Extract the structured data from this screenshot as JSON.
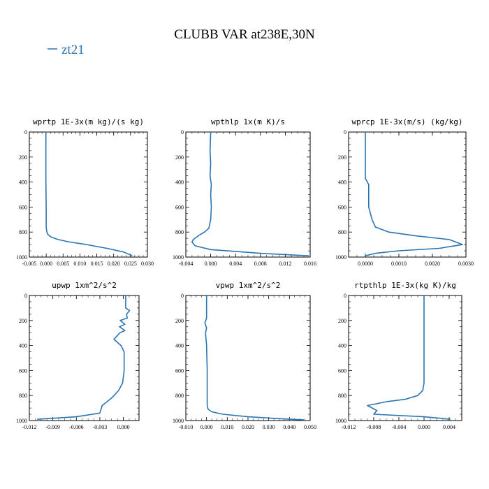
{
  "title": "CLUBB VAR at238E,30N",
  "legend": {
    "label": "zt21",
    "color": "#2a74b1"
  },
  "line_color": "#2a74b1",
  "chart_data": [
    {
      "type": "line",
      "title": "wprtp  1E-3x(m kg)/(s kg)",
      "xlim": [
        -0.005,
        0.03
      ],
      "ylim": [
        1000,
        0
      ],
      "xticks": [
        -0.005,
        0.0,
        0.005,
        0.01,
        0.015,
        0.02,
        0.025,
        0.03
      ],
      "xtick_labels": [
        "-0.005",
        "0.000",
        "0.005",
        "0.010",
        "0.015",
        "0.020",
        "0.025",
        "0.030"
      ],
      "yticks": [
        0,
        200,
        400,
        600,
        800,
        1000
      ],
      "ytick_labels": [
        "0",
        "200",
        "400",
        "600",
        "800",
        "1000"
      ],
      "series": [
        {
          "name": "zt21",
          "x": [
            -0.0001,
            -0.0001,
            -0.0001,
            0.0,
            0.0,
            0.0002,
            0.0005,
            0.0015,
            0.0035,
            0.007,
            0.012,
            0.018,
            0.023,
            0.0255
          ],
          "y": [
            0,
            200,
            400,
            600,
            760,
            800,
            820,
            840,
            860,
            880,
            900,
            930,
            960,
            990
          ]
        }
      ]
    },
    {
      "type": "line",
      "title": "wpthlp  1x(m K)/s",
      "xlim": [
        -0.004,
        0.016
      ],
      "ylim": [
        1000,
        0
      ],
      "xticks": [
        -0.004,
        0.0,
        0.004,
        0.008,
        0.012,
        0.016
      ],
      "xtick_labels": [
        "-0.004",
        "0.000",
        "0.004",
        "0.008",
        "0.012",
        "0.016"
      ],
      "yticks": [
        0,
        200,
        400,
        600,
        800,
        1000
      ],
      "ytick_labels": [
        "0",
        "200",
        "400",
        "600",
        "800",
        "1000"
      ],
      "series": [
        {
          "name": "zt21",
          "x": [
            0.0,
            -0.0001,
            0.0,
            -0.0001,
            0.0001,
            0.0,
            0.0001,
            0.0,
            -0.0003,
            -0.001,
            -0.002,
            -0.0028,
            -0.003,
            -0.0025,
            0.0,
            0.008,
            0.0158
          ],
          "y": [
            0,
            150,
            250,
            350,
            420,
            500,
            600,
            700,
            770,
            800,
            830,
            860,
            880,
            910,
            940,
            970,
            990
          ]
        }
      ]
    },
    {
      "type": "line",
      "title": "wprcp  1E-3x(m/s) (kg/kg)",
      "xlim": [
        -0.0005,
        0.003
      ],
      "ylim": [
        1000,
        0
      ],
      "xticks": [
        0.0,
        0.001,
        0.002,
        0.003
      ],
      "xtick_labels": [
        "0.0000",
        "0.0010",
        "0.0020",
        "0.0030"
      ],
      "yticks": [
        0,
        200,
        400,
        600,
        800,
        1000
      ],
      "ytick_labels": [
        "0",
        "200",
        "400",
        "600",
        "800",
        "1000"
      ],
      "series": [
        {
          "name": "zt21",
          "x": [
            0.0,
            0.0,
            0.0001,
            0.0001,
            0.0002,
            0.0003,
            0.0007,
            0.0015,
            0.0025,
            0.0029,
            0.0022,
            0.001,
            0.0003,
            0.0
          ],
          "y": [
            0,
            370,
            420,
            600,
            700,
            760,
            800,
            830,
            860,
            900,
            930,
            950,
            970,
            990
          ]
        }
      ]
    },
    {
      "type": "line",
      "title": "upwp  1xm^2/s^2",
      "xlim": [
        -0.012,
        0.002
      ],
      "ylim": [
        1000,
        0
      ],
      "xticks": [
        -0.012,
        -0.009,
        -0.006,
        -0.003,
        0.0
      ],
      "xtick_labels": [
        "-0.012",
        "-0.009",
        "-0.006",
        "-0.003",
        "0.000"
      ],
      "yticks": [
        0,
        200,
        400,
        600,
        800,
        1000
      ],
      "ytick_labels": [
        "0",
        "200",
        "400",
        "600",
        "800",
        "1000"
      ],
      "series": [
        {
          "name": "zt21",
          "x": [
            0.0003,
            0.0003,
            0.0008,
            0.0004,
            0.0005,
            -0.0004,
            0.0002,
            -0.0005,
            0.0002,
            -0.0005,
            -0.0009,
            -0.0012,
            -0.0003,
            0.0001,
            0.0001,
            -0.0001,
            -0.0006,
            -0.0015,
            -0.0027,
            -0.003,
            -0.006,
            -0.011
          ],
          "y": [
            0,
            100,
            120,
            150,
            180,
            200,
            230,
            250,
            280,
            300,
            330,
            350,
            400,
            450,
            600,
            700,
            760,
            820,
            880,
            940,
            970,
            990
          ]
        }
      ]
    },
    {
      "type": "line",
      "title": "vpwp  1xm^2/s^2",
      "xlim": [
        -0.01,
        0.05
      ],
      "ylim": [
        1000,
        0
      ],
      "xticks": [
        -0.01,
        0.0,
        0.01,
        0.02,
        0.03,
        0.04,
        0.05
      ],
      "xtick_labels": [
        "-0.010",
        "0.000",
        "0.010",
        "0.020",
        "0.030",
        "0.040",
        "0.050"
      ],
      "yticks": [
        0,
        200,
        400,
        600,
        800,
        1000
      ],
      "ytick_labels": [
        "0",
        "200",
        "400",
        "600",
        "800",
        "1000"
      ],
      "series": [
        {
          "name": "zt21",
          "x": [
            0.0,
            0.0,
            -0.0008,
            0.0,
            -0.0005,
            0.0,
            0.0003,
            0.0003,
            0.0008,
            0.0025,
            0.008,
            0.02,
            0.035,
            0.047
          ],
          "y": [
            0,
            180,
            220,
            260,
            300,
            400,
            600,
            880,
            910,
            930,
            950,
            970,
            985,
            995
          ]
        }
      ]
    },
    {
      "type": "line",
      "title": "rtpthlp  1E-3x(kg K)/kg",
      "xlim": [
        -0.012,
        0.006
      ],
      "ylim": [
        1000,
        0
      ],
      "xticks": [
        -0.012,
        -0.008,
        -0.004,
        0.0,
        0.004
      ],
      "xtick_labels": [
        "-0.012",
        "-0.008",
        "-0.004",
        "0.000",
        "0.004"
      ],
      "yticks": [
        0,
        200,
        400,
        600,
        800,
        1000
      ],
      "ytick_labels": [
        "0",
        "200",
        "400",
        "600",
        "800",
        "1000"
      ],
      "series": [
        {
          "name": "zt21",
          "x": [
            0.0,
            0.0,
            -0.0002,
            -0.001,
            -0.003,
            -0.006,
            -0.009,
            -0.0075,
            -0.008,
            0.0,
            0.0042
          ],
          "y": [
            0,
            700,
            760,
            800,
            830,
            850,
            880,
            920,
            950,
            970,
            990
          ]
        }
      ]
    }
  ]
}
